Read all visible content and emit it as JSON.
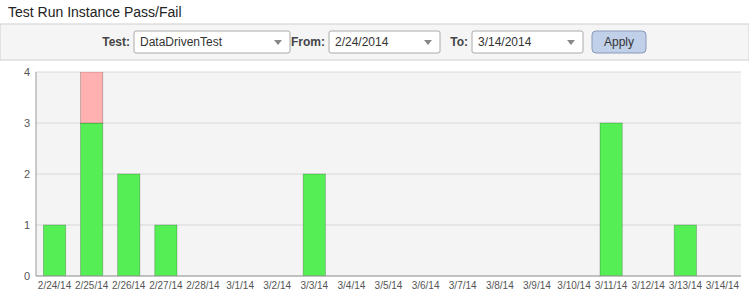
{
  "chart_data": {
    "type": "bar",
    "title": "Test Run Instance Pass/Fail",
    "annotations": [
      "Test:",
      "DataDrivenTest",
      "From:",
      "2/24/2014",
      "To:",
      "3/14/2014",
      "Apply"
    ],
    "categories": [
      "2/24/14",
      "2/25/14",
      "2/26/14",
      "2/27/14",
      "2/28/14",
      "3/1/14",
      "3/2/14",
      "3/3/14",
      "3/4/14",
      "3/5/14",
      "3/6/14",
      "3/7/14",
      "3/8/14",
      "3/9/14",
      "3/10/14",
      "3/11/14",
      "3/12/14",
      "3/13/14",
      "3/14/14"
    ],
    "series": [
      {
        "color": "#55EE55",
        "values": [
          1,
          3,
          2,
          1,
          0,
          0,
          0,
          2,
          0,
          0,
          0,
          0,
          0,
          0,
          0,
          3,
          0,
          1,
          0
        ]
      },
      {
        "color": "#FFB0B0",
        "values": [
          0,
          1,
          0,
          0,
          0,
          0,
          0,
          0,
          0,
          0,
          0,
          0,
          0,
          0,
          0,
          0,
          0,
          0,
          0
        ]
      }
    ],
    "stacked": true,
    "ylim": [
      0,
      4
    ],
    "yticks": [
      0,
      1,
      2,
      3,
      4
    ],
    "grid": true
  }
}
